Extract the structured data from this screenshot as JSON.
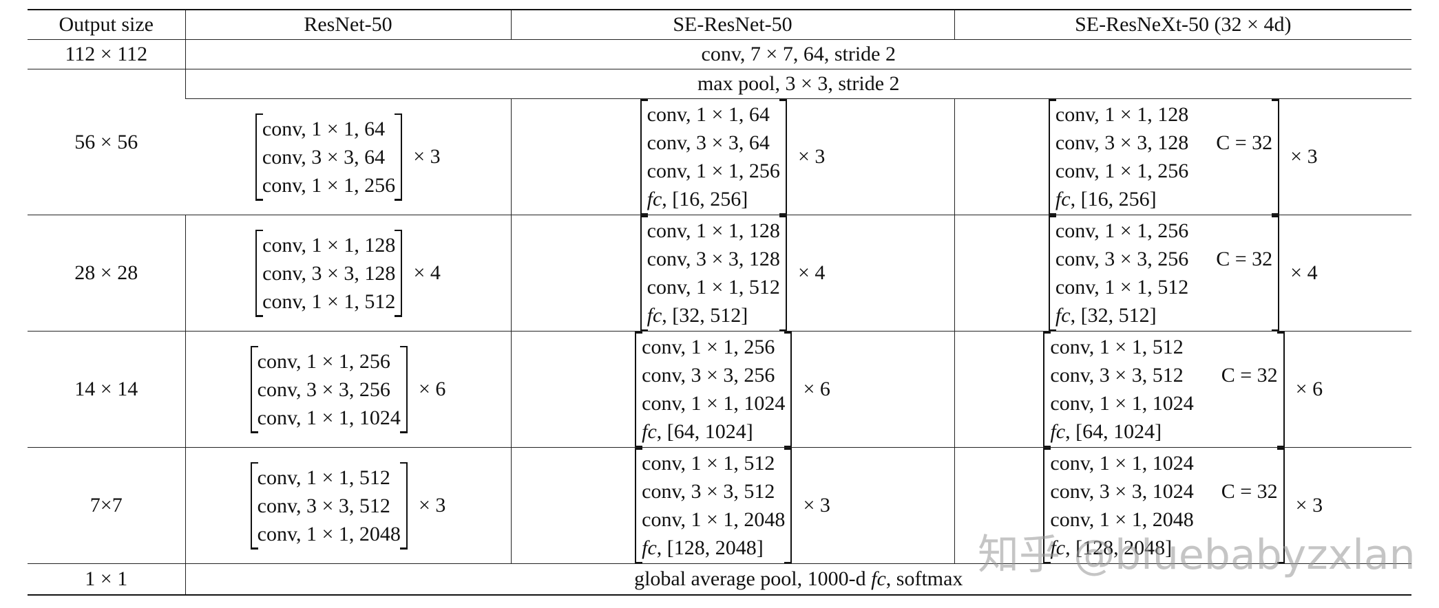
{
  "table": {
    "header": [
      "Output size",
      "ResNet-50",
      "SE-ResNet-50",
      "SE-ResNeXt-50 (32 × 4d)"
    ],
    "conv1": {
      "output_size": "112 × 112",
      "text": "conv, 7 × 7, 64, stride 2"
    },
    "pool": {
      "output_size": "56 × 56",
      "text": "max pool, 3 × 3, stride 2"
    },
    "stages": [
      {
        "resnet": {
          "lines": [
            "conv, 1 × 1, 64",
            "conv, 3 × 3, 64",
            "conv, 1 × 1, 256"
          ],
          "repeat": "× 3"
        },
        "se": {
          "lines": [
            "conv, 1 × 1, 64",
            "conv, 3 × 3, 64",
            "conv, 1 × 1, 256"
          ],
          "fc": {
            "name": "fc",
            "rest": ", [16, 256]"
          },
          "repeat": "× 3"
        },
        "senext": {
          "lines": [
            "conv, 1 × 1, 128",
            "conv, 3 × 3, 128",
            "conv, 1 × 1, 256"
          ],
          "fc": {
            "name": "fc",
            "rest": ", [16, 256]"
          },
          "cardinality": "C = 32",
          "repeat": "× 3"
        }
      },
      {
        "output_size": "28 × 28",
        "resnet": {
          "lines": [
            "conv, 1 × 1, 128",
            "conv, 3 × 3, 128",
            "conv, 1 × 1, 512"
          ],
          "repeat": "× 4"
        },
        "se": {
          "lines": [
            "conv, 1 × 1, 128",
            "conv, 3 × 3, 128",
            "conv, 1 × 1, 512"
          ],
          "fc": {
            "name": "fc",
            "rest": ", [32, 512]"
          },
          "repeat": "× 4"
        },
        "senext": {
          "lines": [
            "conv, 1 × 1, 256",
            "conv, 3 × 3, 256",
            "conv, 1 × 1, 512"
          ],
          "fc": {
            "name": "fc",
            "rest": ", [32, 512]"
          },
          "cardinality": "C = 32",
          "repeat": "× 4"
        }
      },
      {
        "output_size": "14 × 14",
        "resnet": {
          "lines": [
            "conv, 1 × 1, 256",
            "conv, 3 × 3, 256",
            "conv, 1 × 1, 1024"
          ],
          "repeat": "× 6"
        },
        "se": {
          "lines": [
            "conv, 1 × 1, 256",
            "conv, 3 × 3, 256",
            "conv, 1 × 1, 1024"
          ],
          "fc": {
            "name": "fc",
            "rest": ", [64, 1024]"
          },
          "repeat": "× 6"
        },
        "senext": {
          "lines": [
            "conv, 1 × 1, 512",
            "conv, 3 × 3, 512",
            "conv, 1 × 1, 1024"
          ],
          "fc": {
            "name": "fc",
            "rest": ", [64, 1024]"
          },
          "cardinality": "C = 32",
          "repeat": "× 6"
        }
      },
      {
        "output_size": "7×7",
        "resnet": {
          "lines": [
            "conv, 1 × 1, 512",
            "conv, 3 × 3, 512",
            "conv, 1 × 1, 2048"
          ],
          "repeat": "× 3"
        },
        "se": {
          "lines": [
            "conv, 1 × 1, 512",
            "conv, 3 × 3, 512",
            "conv, 1 × 1, 2048"
          ],
          "fc": {
            "name": "fc",
            "rest": ", [128, 2048]"
          },
          "repeat": "× 3"
        },
        "senext": {
          "lines": [
            "conv, 1 × 1, 1024",
            "conv, 3 × 3, 1024",
            "conv, 1 × 1, 2048"
          ],
          "fc": {
            "name": "fc",
            "rest": ", [128, 2048]"
          },
          "cardinality": "C = 32",
          "repeat": "× 3"
        }
      }
    ],
    "final": {
      "output_size": "1 × 1",
      "parts": [
        "global average pool, 1000-d ",
        "fc",
        ", softmax"
      ]
    }
  },
  "watermark": "知乎 @bluebabyzxlan"
}
